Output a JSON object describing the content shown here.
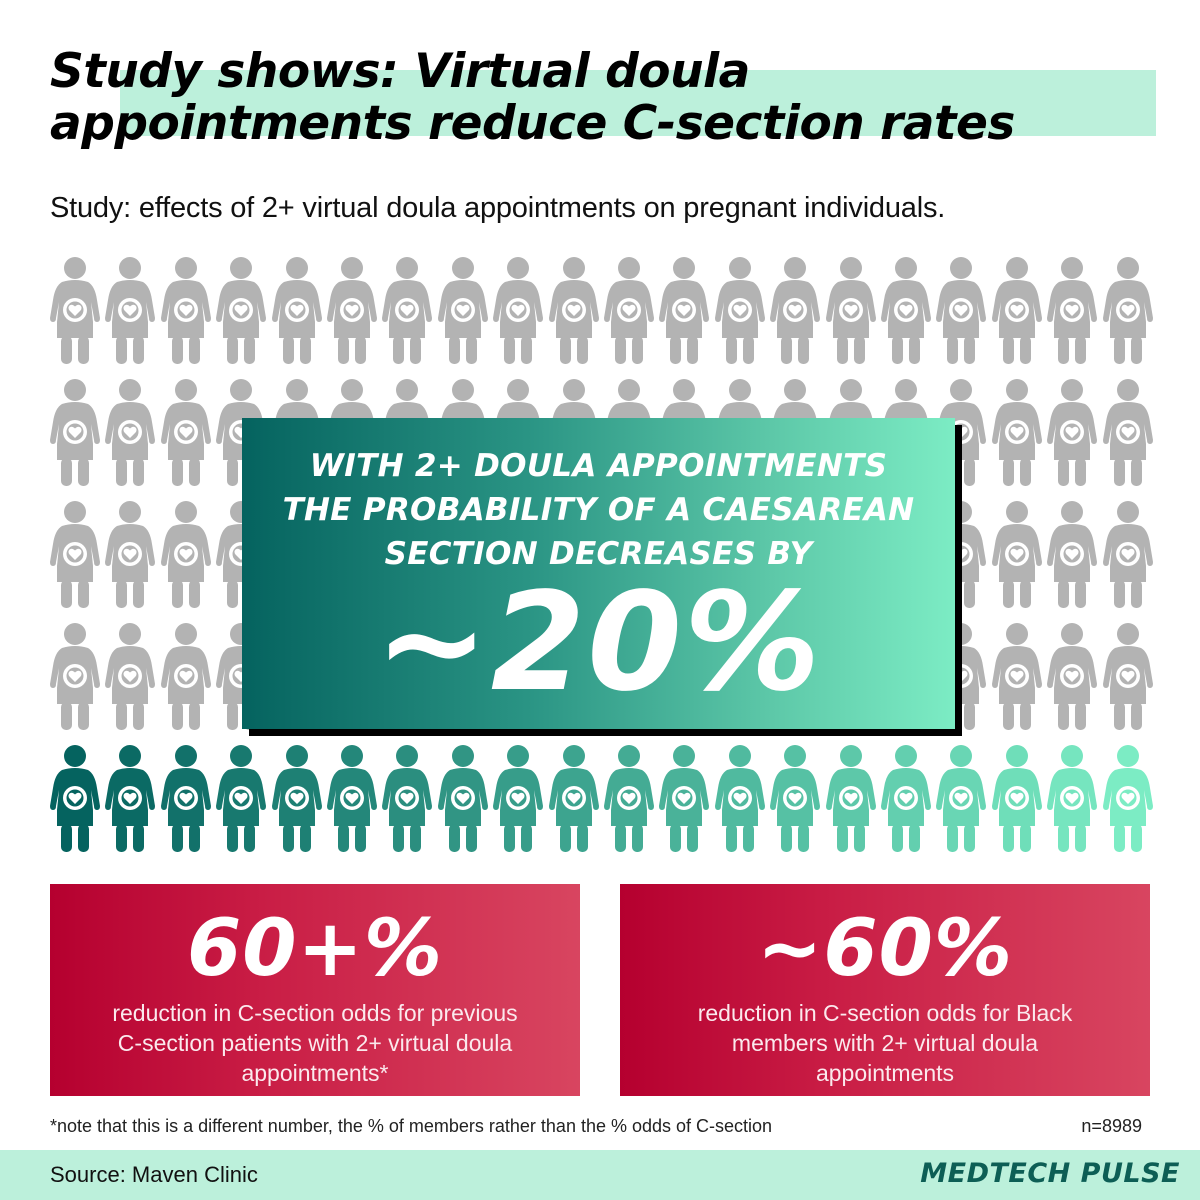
{
  "header": {
    "title_lines": [
      "Study shows: Virtual doula",
      "appointments reduce C-section rates"
    ],
    "subtitle": "Study: effects of 2+ virtual doula appointments on pregnant individuals."
  },
  "pictogram": {
    "icon": "pregnant-person-with-heart-icon",
    "columns": 20,
    "rows": 5,
    "gray_rows": 4,
    "highlighted_rows": 1,
    "gray_color": "#b3b3b3",
    "highlight_gradient": [
      "#05635f",
      "#7cecc4"
    ]
  },
  "callout": {
    "text_lines": [
      "WITH 2+ DOULA APPOINTMENTS",
      "THE PROBABILITY OF A CAESAREAN",
      "SECTION DECREASES BY"
    ],
    "value": "~20%",
    "gradient": [
      "#05635f",
      "#7cecc4"
    ]
  },
  "stats": [
    {
      "value": "60+%",
      "description_lines": [
        "reduction in C-section odds for previous",
        "C-section patients with 2+ virtual doula",
        "appointments*"
      ]
    },
    {
      "value": "~60%",
      "description_lines": [
        "reduction in C-section odds for Black",
        "members with 2+ virtual doula",
        "appointments"
      ]
    }
  ],
  "footnote": "*note that this is a different number, the % of members rather than the % odds of C-section",
  "sample_size": "n=8989",
  "footer": {
    "source": "Source: Maven Clinic",
    "brand": "MEDTECH PULSE"
  },
  "colors": {
    "highlight_bar": "#bcf0db",
    "stat_card_gradient": [
      "#b5002f",
      "#d84560"
    ],
    "brand": "#0d5e55"
  }
}
